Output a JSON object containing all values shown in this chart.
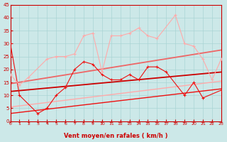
{
  "xlabel": "Vent moyen/en rafales ( km/h )",
  "bg_color": "#cce8e8",
  "grid_color": "#aad4d4",
  "xlim": [
    0,
    23
  ],
  "ylim": [
    0,
    45
  ],
  "yticks": [
    0,
    5,
    10,
    15,
    20,
    25,
    30,
    35,
    40,
    45
  ],
  "xticks": [
    0,
    1,
    2,
    3,
    4,
    5,
    6,
    7,
    8,
    9,
    10,
    11,
    12,
    13,
    14,
    15,
    16,
    17,
    18,
    19,
    20,
    21,
    22,
    23
  ],
  "series": [
    {
      "x": [
        0,
        1,
        3,
        4,
        5,
        6,
        7,
        8,
        9,
        10,
        11,
        12,
        13,
        14,
        15,
        16,
        17,
        19,
        20,
        21,
        23
      ],
      "y": [
        30,
        10,
        3,
        5,
        10,
        13,
        20,
        23,
        22,
        18,
        16,
        16,
        18,
        16,
        21,
        21,
        19,
        10,
        15,
        9,
        12
      ],
      "color": "#ee1111",
      "lw": 0.8
    },
    {
      "x": [
        0,
        1,
        2,
        4,
        5,
        6,
        7,
        8,
        9,
        10,
        11,
        12,
        13,
        14,
        15,
        16,
        18,
        19,
        20,
        21,
        22,
        23
      ],
      "y": [
        18,
        14,
        17,
        24,
        25,
        25,
        26,
        33,
        34,
        19,
        33,
        33,
        34,
        36,
        33,
        32,
        41,
        30,
        29,
        24,
        16,
        24
      ],
      "color": "#ffaaaa",
      "lw": 0.8
    }
  ],
  "trend_lines": [
    {
      "x0": 0,
      "x1": 23,
      "y0": 11.5,
      "y1": 19.0,
      "color": "#cc0000",
      "lw": 1.3
    },
    {
      "x0": 0,
      "x1": 23,
      "y0": 14.5,
      "y1": 27.5,
      "color": "#ee6666",
      "lw": 1.3
    },
    {
      "x0": 0,
      "x1": 23,
      "y0": 3.0,
      "y1": 12.5,
      "color": "#ee1111",
      "lw": 1.0
    },
    {
      "x0": 0,
      "x1": 23,
      "y0": 5.5,
      "y1": 15.5,
      "color": "#ffaaaa",
      "lw": 1.0
    }
  ],
  "arrow_color": "#cc2222",
  "spine_color": "#cc0000",
  "tick_color": "#cc0000",
  "xlabel_color": "#cc0000",
  "xlabel_fontsize": 6.0,
  "tick_fontsize_x": 4.5,
  "tick_fontsize_y": 5.0
}
